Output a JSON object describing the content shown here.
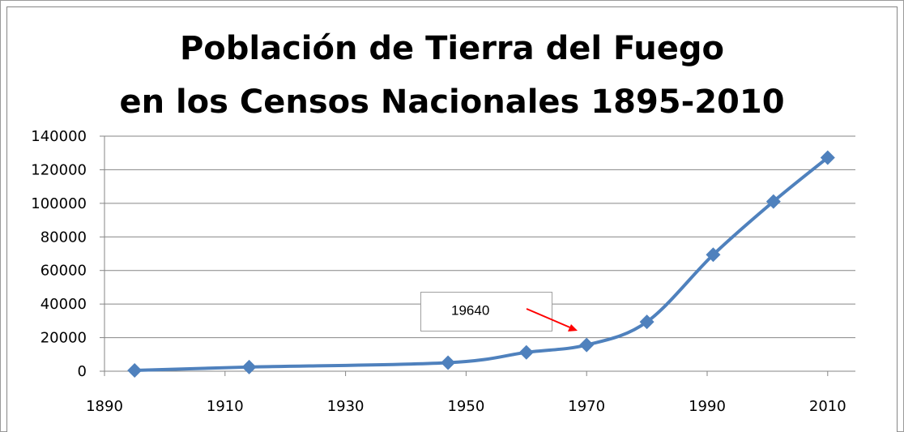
{
  "chart_data": {
    "type": "line",
    "title": [
      "Población de Tierra del Fuego",
      "en los Censos Nacionales 1895-2010"
    ],
    "x": [
      1895,
      1914,
      1947,
      1960,
      1970,
      1980,
      1991,
      2001,
      2010
    ],
    "series": [
      {
        "name": "Población",
        "color": "#4f81bd",
        "values": [
          477,
          2504,
          5045,
          11209,
          15658,
          29392,
          69369,
          101079,
          127205
        ]
      }
    ],
    "xlim": [
      1890,
      2015
    ],
    "xticks": [
      1890,
      1910,
      1930,
      1950,
      1970,
      1990,
      2010
    ],
    "ylim": [
      0,
      140000
    ],
    "yticks": [
      0,
      20000,
      40000,
      60000,
      80000,
      100000,
      120000,
      140000
    ],
    "grid": true,
    "legend": false,
    "annotations": [
      {
        "text": "19640",
        "color": "#ff0000"
      }
    ]
  }
}
